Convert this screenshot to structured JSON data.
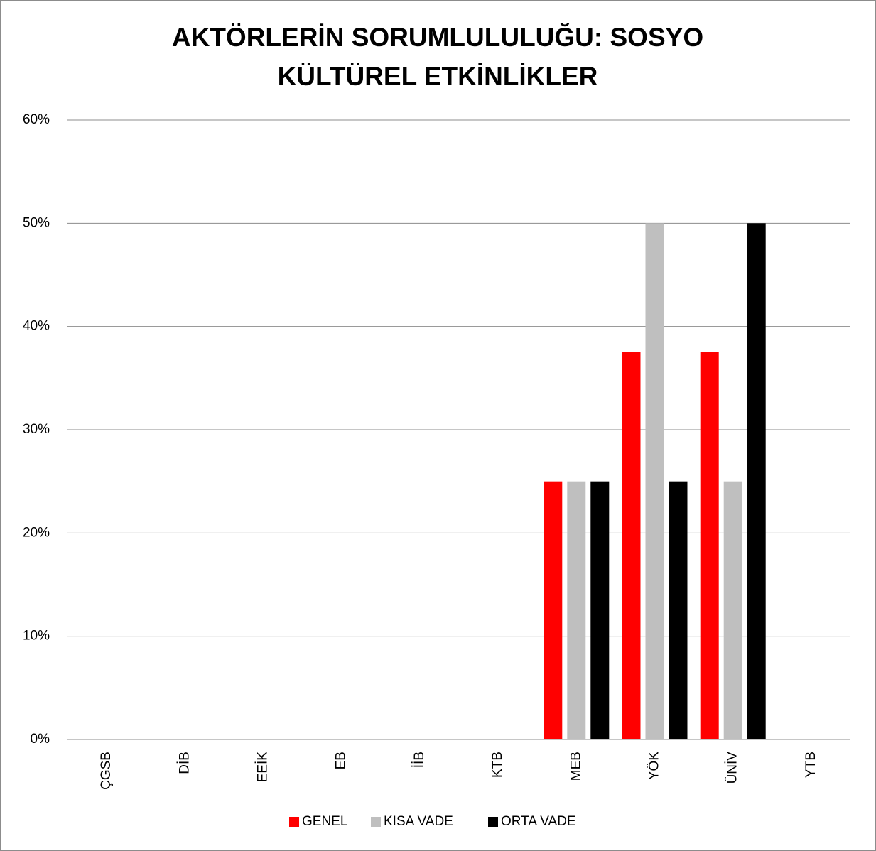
{
  "chart_data": {
    "type": "bar",
    "title": [
      "AKTÖRLERİN SORUMLULULUĞU: SOSYO",
      "KÜLTÜREL ETKİNLİKLER"
    ],
    "categories": [
      "ÇGSB",
      "DİB",
      "EEİK",
      "EB",
      "İİB",
      "KTB",
      "MEB",
      "YÖK",
      "ÜNİV",
      "YTB"
    ],
    "series": [
      {
        "name": "GENEL",
        "color": "#ff0000",
        "values": [
          0,
          0,
          0,
          0,
          0,
          0,
          25,
          37.5,
          37.5,
          0
        ]
      },
      {
        "name": "KISA VADE",
        "color": "#bfbfbf",
        "values": [
          0,
          0,
          0,
          0,
          0,
          0,
          25,
          50,
          25,
          0
        ]
      },
      {
        "name": "ORTA VADE",
        "color": "#000000",
        "values": [
          0,
          0,
          0,
          0,
          0,
          0,
          25,
          25,
          50,
          0
        ]
      }
    ],
    "ylim": [
      0,
      60
    ],
    "yticks": [
      {
        "value": 0,
        "label": "0%"
      },
      {
        "value": 10,
        "label": "10%"
      },
      {
        "value": 20,
        "label": "20%"
      },
      {
        "value": 30,
        "label": "30%"
      },
      {
        "value": 40,
        "label": "40%"
      },
      {
        "value": 50,
        "label": "50%"
      },
      {
        "value": 60,
        "label": "60%"
      }
    ],
    "grid": true,
    "legend": "bottom"
  }
}
